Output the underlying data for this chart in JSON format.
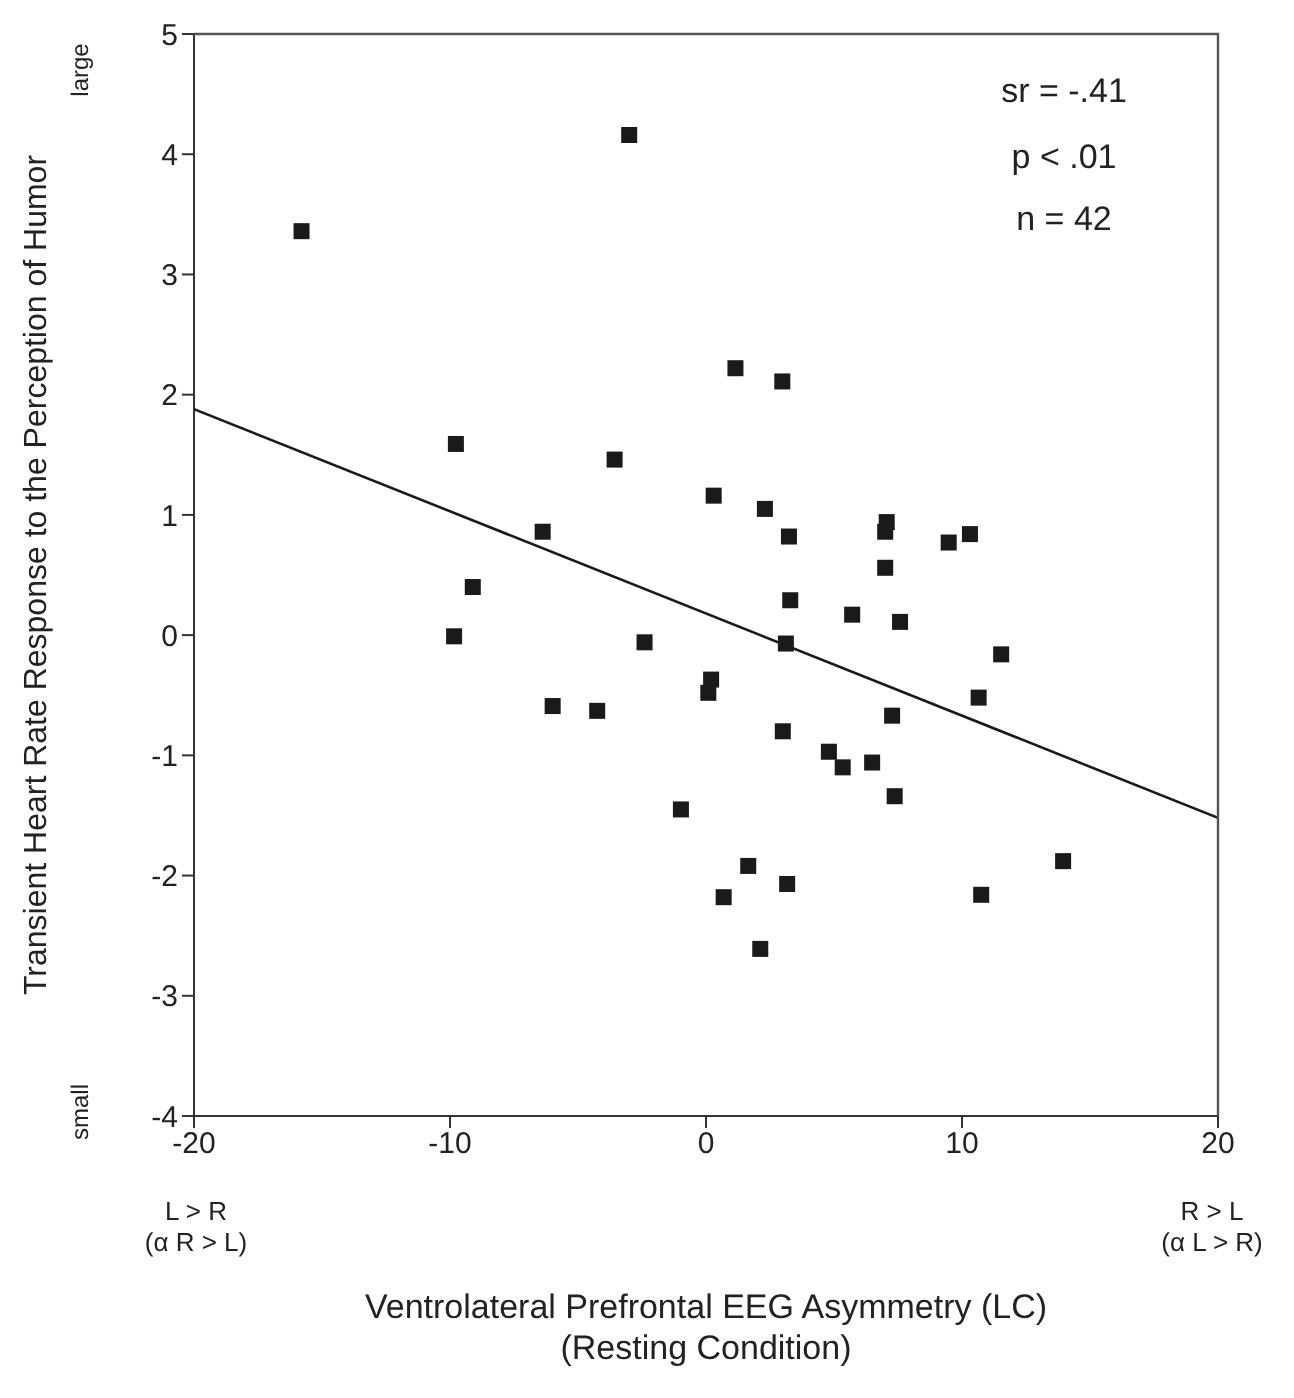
{
  "chart_data": {
    "type": "scatter",
    "xlabel": "Ventrolateral Prefrontal EEG Asymmetry (LC)\n(Resting Condition)",
    "ylabel": "Transient Heart Rate Response to the Perception of Humor",
    "xlim": [
      -20,
      20
    ],
    "xticks": [
      -20,
      -10,
      0,
      10,
      20
    ],
    "ylim": [
      -4,
      5
    ],
    "yticks": [
      -4,
      -3,
      -2,
      -1,
      0,
      1,
      2,
      3,
      4,
      5
    ],
    "grid": false,
    "annotations": [
      "sr = -.41",
      "p < .01",
      "n = 42",
      "large",
      "small",
      "L > R\n(α R > L)",
      "R > L\n(α L > R)"
    ],
    "series": [
      {
        "color": "#1a1a1a",
        "marker": "square",
        "x": [
          -15.8,
          -3.0,
          -9.77,
          -3.57,
          -6.38,
          -9.11,
          1.15,
          2.98,
          0.3,
          2.3,
          3.24,
          7.06,
          7.0,
          9.48,
          10.31,
          7.0,
          3.29,
          5.71,
          7.58,
          3.12,
          11.53,
          0.2,
          0.09,
          10.65,
          7.27,
          3.0,
          4.8,
          5.34,
          6.49,
          7.37,
          -0.98,
          1.65,
          13.95,
          3.17,
          0.69,
          10.75,
          2.12,
          -9.84,
          -2.4,
          -5.99,
          -4.25
        ],
        "values": [
          3.36,
          4.16,
          1.59,
          1.46,
          0.86,
          0.4,
          2.22,
          2.11,
          1.16,
          1.05,
          0.82,
          0.94,
          0.86,
          0.77,
          0.84,
          0.56,
          0.29,
          0.17,
          0.11,
          -0.07,
          -0.16,
          -0.37,
          -0.48,
          -0.52,
          -0.67,
          -0.8,
          -0.97,
          -1.1,
          -1.06,
          -1.34,
          -1.45,
          -1.92,
          -1.88,
          -2.07,
          -2.18,
          -2.16,
          -2.61,
          -0.01,
          -0.06,
          -0.59,
          -0.63
        ]
      },
      {
        "type": "line",
        "color": "#1a1a1a",
        "marker": "none",
        "x": [
          -20,
          20
        ],
        "values": [
          1.88,
          -1.52
        ]
      }
    ]
  }
}
